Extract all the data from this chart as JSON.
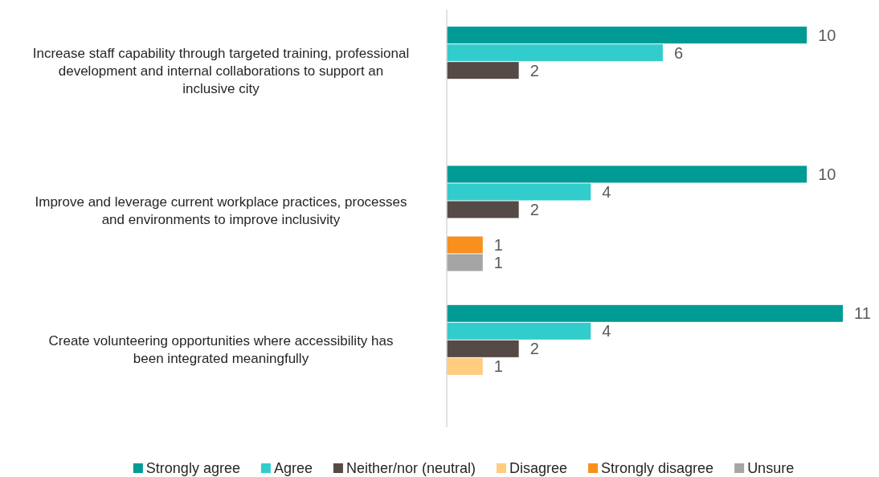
{
  "chart_data": {
    "type": "bar",
    "orientation": "horizontal",
    "data_labels": true,
    "legend": "bottom",
    "categories": [
      "Increase staff capability through targeted training, professional development and internal collaborations to support an inclusive city",
      "Improve and leverage current workplace practices, processes and environments to improve inclusivity",
      "Create volunteering opportunities where accessibility has been integrated meaningfully"
    ],
    "series": [
      {
        "name": "Strongly agree",
        "color": "#009b95",
        "values": [
          10,
          10,
          11
        ]
      },
      {
        "name": "Agree",
        "color": "#33cccc",
        "values": [
          6,
          4,
          4
        ]
      },
      {
        "name": "Neither/nor (neutral)",
        "color": "#554a45",
        "values": [
          2,
          2,
          2
        ]
      },
      {
        "name": "Disagree",
        "color": "#ffcc80",
        "values": [
          null,
          null,
          1
        ]
      },
      {
        "name": "Strongly disagree",
        "color": "#f7901e",
        "values": [
          null,
          1,
          null
        ]
      },
      {
        "name": "Unsure",
        "color": "#a5a5a5",
        "values": [
          null,
          1,
          null
        ]
      }
    ]
  }
}
